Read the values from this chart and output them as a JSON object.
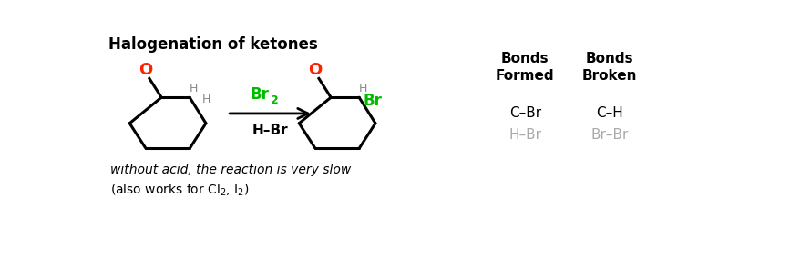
{
  "title": "Halogenation of ketones",
  "background_color": "#ffffff",
  "reagent_color": "#00bb00",
  "arrow_color": "#000000",
  "O_color": "#ff2200",
  "Br_color": "#00bb00",
  "gray_color": "#aaaaaa",
  "black_color": "#000000",
  "bonds_formed_black": "C–Br",
  "bonds_broken_black": "C–H",
  "bonds_formed_gray": "H–Br",
  "bonds_broken_gray": "Br–Br",
  "note1": "without acid, the reaction is very slow",
  "reagent_above": "Br",
  "reagent_sub": "2",
  "reagent_below": "H–Br"
}
